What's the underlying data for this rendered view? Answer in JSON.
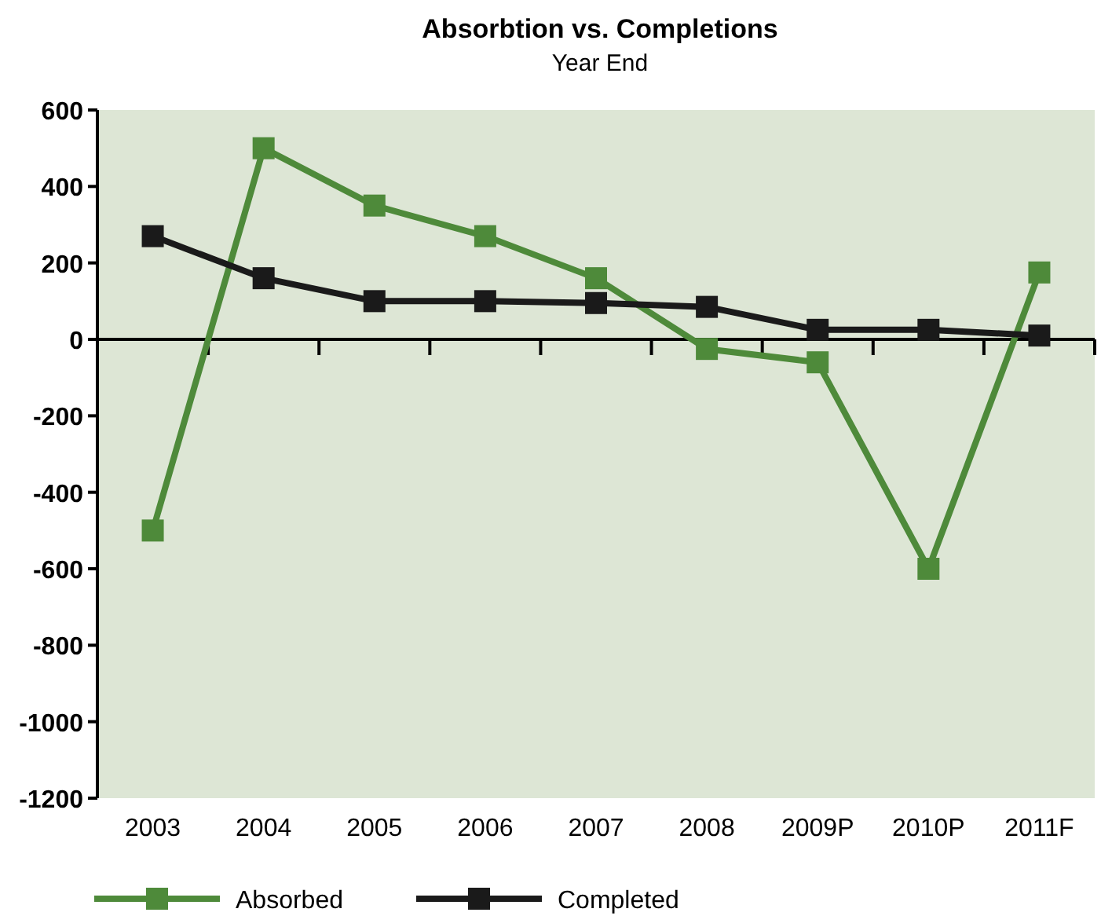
{
  "chart_data": {
    "type": "line",
    "title": "Absorbtion vs. Completions",
    "subtitle": "Year End",
    "categories": [
      "2003",
      "2004",
      "2005",
      "2006",
      "2007",
      "2008",
      "2009P",
      "2010P",
      "2011F"
    ],
    "series": [
      {
        "name": "Absorbed",
        "color": "#4e8a3a",
        "values": [
          -500,
          500,
          350,
          270,
          160,
          -25,
          -60,
          -600,
          175
        ]
      },
      {
        "name": "Completed",
        "color": "#1a1a1a",
        "values": [
          270,
          160,
          100,
          100,
          95,
          85,
          25,
          25,
          10
        ]
      }
    ],
    "ylim": [
      -1200,
      600
    ],
    "yticks": [
      -1200,
      -1000,
      -800,
      -600,
      -400,
      -200,
      0,
      200,
      400,
      600
    ],
    "ref_lines": [
      {
        "axis": "y",
        "value": 0,
        "color": "#000000"
      }
    ],
    "legend": "bottom",
    "marker": "square",
    "line_style": "solid"
  }
}
